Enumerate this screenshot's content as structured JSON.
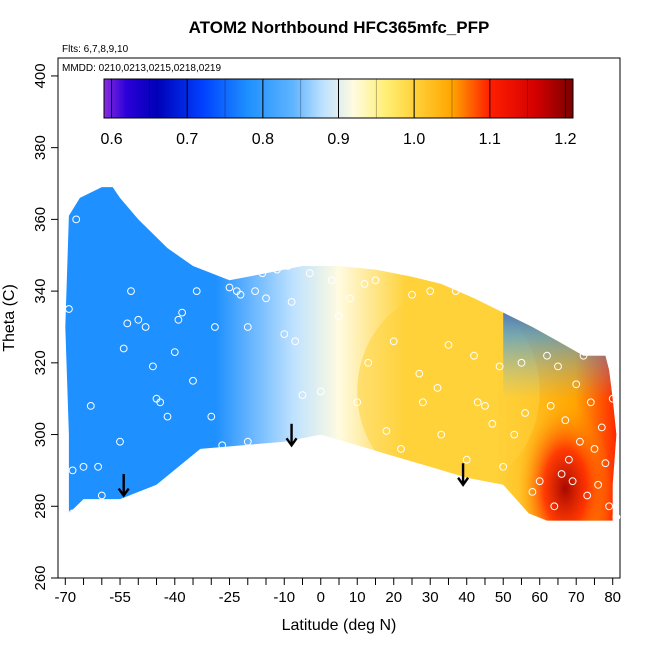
{
  "chart_data": {
    "type": "heatmap",
    "title": "ATOM2 Northbound HFC365mfc_PFP",
    "annotations": {
      "flights": "Flts: 6,7,8,9,10",
      "dates": "MMDD: 0210,0213,0215,0218,0219"
    },
    "xlabel": "Latitude (deg N)",
    "ylabel": "Theta (C)",
    "xlim": [
      -72,
      82
    ],
    "ylim": [
      260,
      405
    ],
    "x_ticks": [
      -70,
      -55,
      -40,
      -25,
      -10,
      0,
      10,
      20,
      30,
      40,
      50,
      60,
      70,
      80
    ],
    "x_tick_labels": [
      "-70",
      "-55",
      "-40",
      "-25",
      "-10",
      "0",
      "10",
      "20",
      "30",
      "40",
      "50",
      "60",
      "70",
      "80"
    ],
    "y_ticks": [
      260,
      280,
      300,
      320,
      340,
      360,
      380,
      400
    ],
    "y_tick_labels": [
      "260",
      "280",
      "300",
      "320",
      "340",
      "360",
      "380",
      "400"
    ],
    "colorbar": {
      "min": 0.59,
      "max": 1.21,
      "ticks": [
        0.6,
        0.7,
        0.8,
        0.9,
        1.0,
        1.1,
        1.2
      ],
      "tick_labels": [
        "0.6",
        "0.7",
        "0.8",
        "0.9",
        "1.0",
        "1.1",
        "1.2"
      ],
      "stops": [
        {
          "v": 0.59,
          "c": "#8a2be2"
        },
        {
          "v": 0.62,
          "c": "#2a00d8"
        },
        {
          "v": 0.66,
          "c": "#0000b8"
        },
        {
          "v": 0.72,
          "c": "#0040ff"
        },
        {
          "v": 0.78,
          "c": "#1e90ff"
        },
        {
          "v": 0.84,
          "c": "#5fb4ff"
        },
        {
          "v": 0.88,
          "c": "#bfe2ff"
        },
        {
          "v": 0.92,
          "c": "#fffbe0"
        },
        {
          "v": 0.96,
          "c": "#fff07a"
        },
        {
          "v": 1.0,
          "c": "#ffd23a"
        },
        {
          "v": 1.05,
          "c": "#ffa500"
        },
        {
          "v": 1.1,
          "c": "#ff1e00"
        },
        {
          "v": 1.16,
          "c": "#d40000"
        },
        {
          "v": 1.21,
          "c": "#7a0000"
        }
      ]
    },
    "contour_fields": [
      {
        "region": "southern hemisphere",
        "approx_value": 0.82
      },
      {
        "region": "tropics",
        "approx_value": 0.93
      },
      {
        "region": "northern mid-latitudes",
        "approx_value": 1.04
      },
      {
        "region": "northern high latitudes lower troposphere",
        "approx_value": 1.14
      },
      {
        "region": "northern high latitudes upper levels",
        "approx_value": 0.7
      }
    ],
    "region_outline": [
      [
        -69,
        278
      ],
      [
        -65,
        282
      ],
      [
        -55,
        282
      ],
      [
        -45,
        286
      ],
      [
        -33,
        296
      ],
      [
        -10,
        298
      ],
      [
        0,
        300
      ],
      [
        10,
        297
      ],
      [
        20,
        294
      ],
      [
        30,
        291
      ],
      [
        40,
        288
      ],
      [
        50,
        286
      ],
      [
        57,
        278
      ],
      [
        62,
        276
      ],
      [
        71,
        276
      ],
      [
        80,
        276
      ],
      [
        80,
        286
      ],
      [
        81,
        300
      ],
      [
        80,
        310
      ],
      [
        79,
        318
      ],
      [
        78,
        322
      ],
      [
        72,
        322
      ],
      [
        65,
        326
      ],
      [
        58,
        330
      ],
      [
        50,
        334
      ],
      [
        42,
        338
      ],
      [
        33,
        342
      ],
      [
        25,
        344
      ],
      [
        15,
        346
      ],
      [
        5,
        347
      ],
      [
        -5,
        347
      ],
      [
        -15,
        345
      ],
      [
        -25,
        343
      ],
      [
        -35,
        347
      ],
      [
        -42,
        352
      ],
      [
        -50,
        360
      ],
      [
        -55,
        366
      ],
      [
        -57,
        369
      ],
      [
        -60,
        369
      ],
      [
        -66,
        366
      ],
      [
        -69,
        361
      ],
      [
        -70,
        330
      ],
      [
        -69,
        300
      ]
    ],
    "arrows": [
      {
        "x": -54,
        "y_start": 289,
        "y_end": 283
      },
      {
        "x": -8,
        "y_start": 303,
        "y_end": 297
      },
      {
        "x": 39,
        "y_start": 292,
        "y_end": 286
      }
    ],
    "sample_points": [
      [
        -69,
        335
      ],
      [
        -68,
        290
      ],
      [
        -68,
        278
      ],
      [
        -67,
        360
      ],
      [
        -65,
        291
      ],
      [
        -63,
        308
      ],
      [
        -61,
        291
      ],
      [
        -60,
        283
      ],
      [
        -55,
        298
      ],
      [
        -54,
        324
      ],
      [
        -53,
        331
      ],
      [
        -52,
        340
      ],
      [
        -50,
        332
      ],
      [
        -48,
        330
      ],
      [
        -46,
        319
      ],
      [
        -45,
        310
      ],
      [
        -44,
        309
      ],
      [
        -43,
        286
      ],
      [
        -42,
        305
      ],
      [
        -40,
        323
      ],
      [
        -39,
        332
      ],
      [
        -38,
        334
      ],
      [
        -35,
        315
      ],
      [
        -34,
        340
      ],
      [
        -30,
        305
      ],
      [
        -29,
        330
      ],
      [
        -27,
        297
      ],
      [
        -25,
        341
      ],
      [
        -23,
        340
      ],
      [
        -22,
        339
      ],
      [
        -20,
        298
      ],
      [
        -20,
        330
      ],
      [
        -18,
        340
      ],
      [
        -16,
        345
      ],
      [
        -15,
        338
      ],
      [
        -12,
        346
      ],
      [
        -10,
        328
      ],
      [
        -9,
        347
      ],
      [
        -8,
        337
      ],
      [
        -7,
        326
      ],
      [
        -5,
        311
      ],
      [
        -3,
        345
      ],
      [
        0,
        312
      ],
      [
        3,
        343
      ],
      [
        5,
        333
      ],
      [
        8,
        338
      ],
      [
        10,
        309
      ],
      [
        12,
        342
      ],
      [
        13,
        320
      ],
      [
        15,
        343
      ],
      [
        18,
        301
      ],
      [
        20,
        326
      ],
      [
        22,
        296
      ],
      [
        25,
        339
      ],
      [
        27,
        317
      ],
      [
        28,
        309
      ],
      [
        30,
        340
      ],
      [
        32,
        313
      ],
      [
        33,
        300
      ],
      [
        35,
        325
      ],
      [
        37,
        340
      ],
      [
        40,
        293
      ],
      [
        42,
        322
      ],
      [
        43,
        309
      ],
      [
        45,
        308
      ],
      [
        47,
        303
      ],
      [
        49,
        319
      ],
      [
        50,
        291
      ],
      [
        53,
        300
      ],
      [
        55,
        320
      ],
      [
        56,
        306
      ],
      [
        58,
        284
      ],
      [
        60,
        287
      ],
      [
        62,
        322
      ],
      [
        63,
        308
      ],
      [
        64,
        280
      ],
      [
        65,
        319
      ],
      [
        66,
        289
      ],
      [
        67,
        304
      ],
      [
        68,
        293
      ],
      [
        69,
        287
      ],
      [
        70,
        314
      ],
      [
        71,
        298
      ],
      [
        72,
        322
      ],
      [
        73,
        283
      ],
      [
        74,
        309
      ],
      [
        75,
        296
      ],
      [
        76,
        286
      ],
      [
        77,
        302
      ],
      [
        78,
        292
      ],
      [
        79,
        280
      ],
      [
        80,
        310
      ],
      [
        80,
        322
      ],
      [
        81,
        277
      ]
    ]
  }
}
